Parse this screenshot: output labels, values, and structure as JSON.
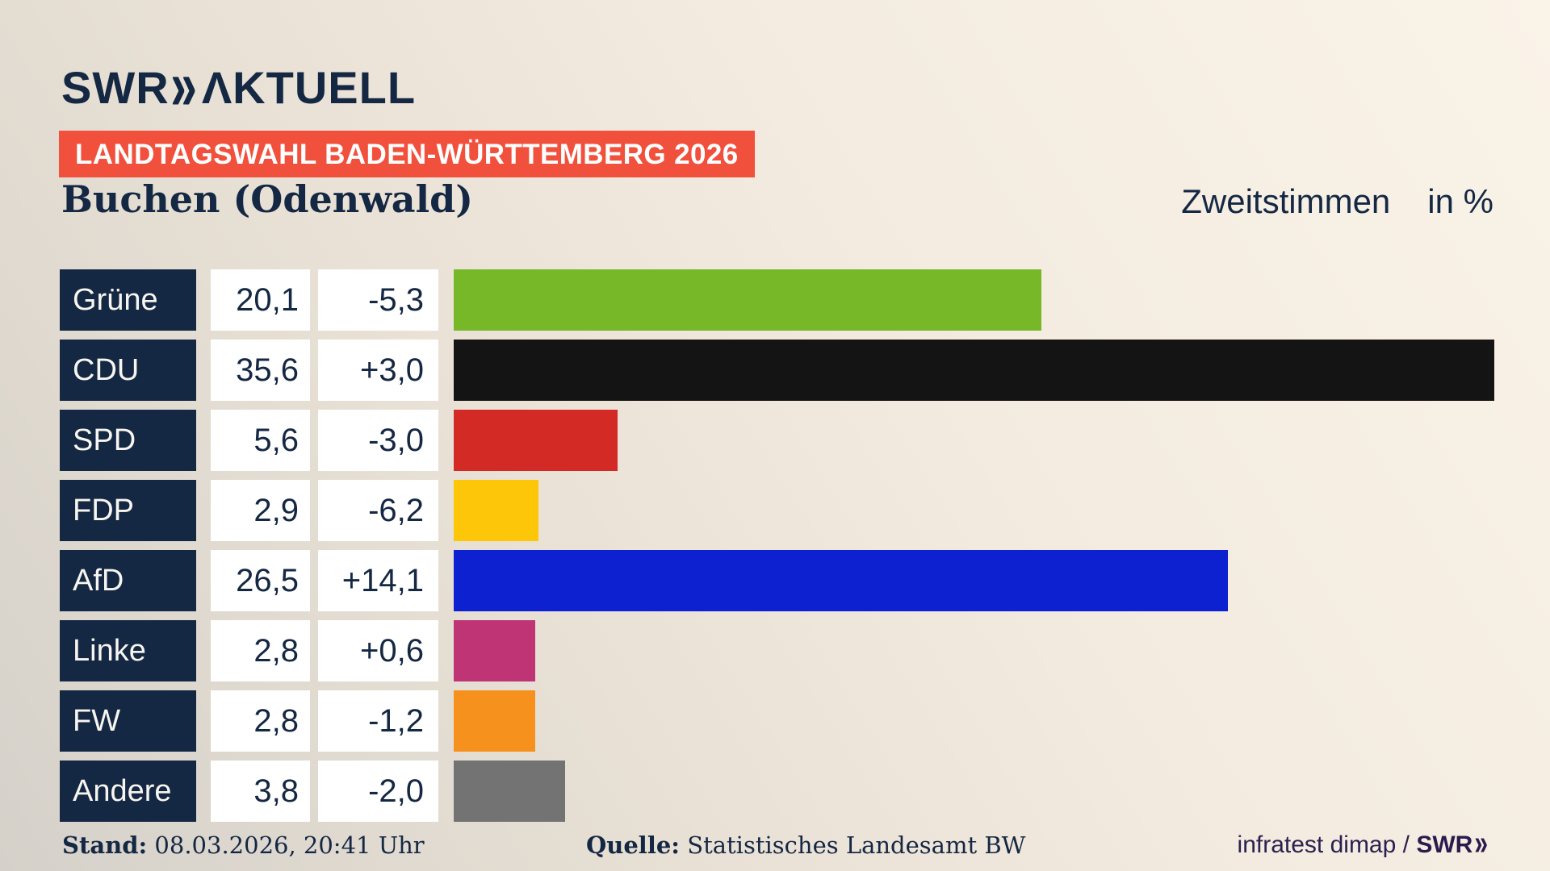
{
  "header": {
    "logo_swr": "SWR",
    "logo_chevrons": "»",
    "logo_aktuell": "ΛKTUELL",
    "banner": "LANDTAGSWAHL BADEN-WÜRTTEMBERG 2026",
    "title": "Buchen (Odenwald)",
    "vote_type_label": "Zweitstimmen",
    "unit_label": "in %"
  },
  "chart_data": {
    "type": "bar",
    "orientation": "horizontal",
    "title": "Buchen (Odenwald)",
    "value_label": "Zweitstimmen",
    "unit": "%",
    "xlim": [
      0,
      37.5
    ],
    "grid": false,
    "legend": "none",
    "series": [
      {
        "party": "Grüne",
        "value": 20.1,
        "value_text": "20,1",
        "change": -5.3,
        "change_text": "-5,3",
        "color": "#77b829"
      },
      {
        "party": "CDU",
        "value": 35.6,
        "value_text": "35,6",
        "change": 3.0,
        "change_text": "+3,0",
        "color": "#141414"
      },
      {
        "party": "SPD",
        "value": 5.6,
        "value_text": "5,6",
        "change": -3.0,
        "change_text": "-3,0",
        "color": "#d42a25"
      },
      {
        "party": "FDP",
        "value": 2.9,
        "value_text": "2,9",
        "change": -6.2,
        "change_text": "-6,2",
        "color": "#fdc609"
      },
      {
        "party": "AfD",
        "value": 26.5,
        "value_text": "26,5",
        "change": 14.1,
        "change_text": "+14,1",
        "color": "#0e21d0"
      },
      {
        "party": "Linke",
        "value": 2.8,
        "value_text": "2,8",
        "change": 0.6,
        "change_text": "+0,6",
        "color": "#bf3475"
      },
      {
        "party": "FW",
        "value": 2.8,
        "value_text": "2,8",
        "change": -1.2,
        "change_text": "-1,2",
        "color": "#f7911d"
      },
      {
        "party": "Andere",
        "value": 3.8,
        "value_text": "3,8",
        "change": -2.0,
        "change_text": "-2,0",
        "color": "#737373"
      }
    ]
  },
  "footer": {
    "stand_label": "Stand:",
    "stand_value": "08.03.2026, 20:41 Uhr",
    "quelle_label": "Quelle:",
    "quelle_value": "Statistisches Landesamt BW",
    "credit_text": "infratest dimap / ",
    "credit_logo_swr": "SWR",
    "credit_logo_chevrons": "»"
  },
  "colors": {
    "navy": "#142743",
    "banner_red": "#f1513c",
    "box_white": "#ffffff",
    "background_light": "#faf3e8",
    "background_dark": "#d5d1ca"
  }
}
